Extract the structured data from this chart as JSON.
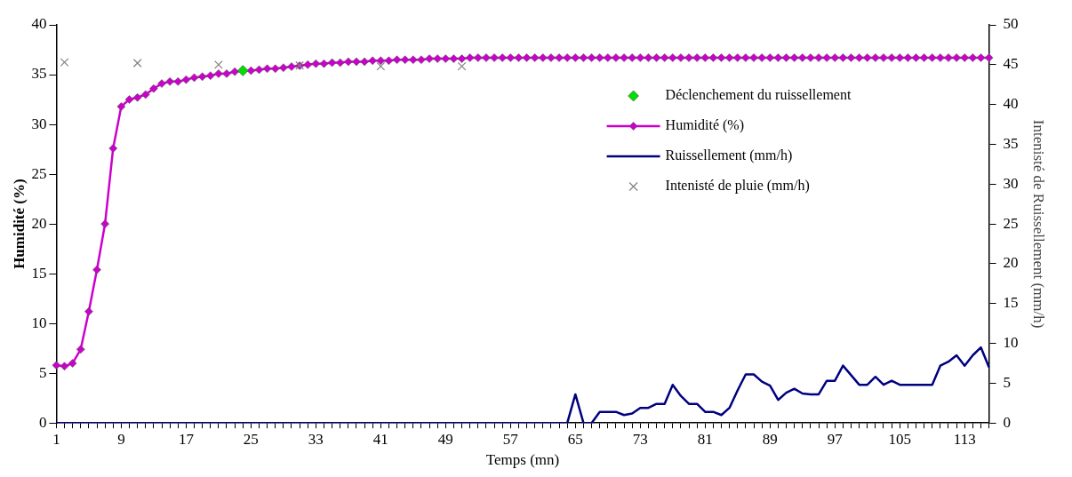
{
  "chart_data": {
    "type": "line",
    "xlabel": "Temps (mn)",
    "ylabel": "Humidité (%)",
    "y2label": "Intenisté de Ruissellement (mm/h)",
    "categories": [
      "1",
      null,
      null,
      null,
      null,
      null,
      null,
      null,
      "9",
      null,
      null,
      null,
      null,
      null,
      null,
      null,
      "17",
      null,
      null,
      null,
      null,
      null,
      null,
      null,
      "25",
      null,
      null,
      null,
      null,
      null,
      null,
      null,
      "33",
      null,
      null,
      null,
      null,
      null,
      null,
      null,
      "41",
      null,
      null,
      null,
      null,
      null,
      null,
      null,
      "49",
      null,
      null,
      null,
      null,
      null,
      null,
      null,
      "57",
      null,
      null,
      null,
      null,
      null,
      null,
      null,
      "65",
      null,
      null,
      null,
      null,
      null,
      null,
      null,
      "73",
      null,
      null,
      null,
      null,
      null,
      null,
      null,
      "81",
      null,
      null,
      null,
      null,
      null,
      null,
      null,
      "89",
      null,
      null,
      null,
      null,
      null,
      null,
      null,
      "97",
      null,
      null,
      null,
      null,
      null,
      null,
      null,
      "105",
      null,
      null,
      null,
      null,
      null,
      null,
      null,
      "113",
      null,
      null,
      null
    ],
    "ylim": [
      0,
      40
    ],
    "yticks": [
      0,
      5,
      10,
      15,
      20,
      25,
      30,
      35,
      40
    ],
    "y2lim": [
      0,
      50
    ],
    "y2ticks": [
      0,
      5,
      10,
      15,
      20,
      25,
      30,
      35,
      40,
      45,
      50
    ],
    "grid": false,
    "legend": "top right",
    "series": [
      {
        "name": "Déclenchement du ruissellement",
        "type": "scatter",
        "marker": "diamond",
        "color": "#00dd00",
        "values": [
          null,
          null,
          null,
          null,
          null,
          null,
          null,
          null,
          null,
          null,
          null,
          null,
          null,
          null,
          null,
          null,
          null,
          null,
          null,
          null,
          null,
          null,
          null,
          35.4,
          null,
          null,
          null,
          null,
          null,
          null,
          null,
          null,
          null,
          null,
          null,
          null,
          null,
          null,
          null,
          null,
          null,
          null,
          null,
          null,
          null,
          null,
          null,
          null,
          null,
          null,
          null,
          null,
          null,
          null,
          null,
          null,
          null,
          null,
          null,
          null,
          null,
          null,
          null,
          null,
          null,
          null,
          null,
          null,
          null,
          null,
          null,
          null,
          null,
          null,
          null,
          null,
          null,
          null,
          null,
          null,
          null,
          null,
          null,
          null,
          null,
          null,
          null,
          null,
          null,
          null,
          null,
          null,
          null,
          null,
          null,
          null,
          null,
          null,
          null,
          null,
          null,
          null,
          null,
          null,
          null,
          null,
          null,
          null,
          null,
          null,
          null,
          null,
          null,
          null,
          null,
          null
        ]
      },
      {
        "name": "Humidité (%)",
        "type": "line",
        "marker": "diamond",
        "color": "#cc00cc",
        "values": [
          5.8,
          5.7,
          6.0,
          7.4,
          11.2,
          15.4,
          20.0,
          27.6,
          31.8,
          32.5,
          32.7,
          33.0,
          33.6,
          34.1,
          34.3,
          34.3,
          34.5,
          34.7,
          34.8,
          34.9,
          35.1,
          35.1,
          35.3,
          35.4,
          35.4,
          35.5,
          35.6,
          35.6,
          35.7,
          35.8,
          35.9,
          36.0,
          36.1,
          36.1,
          36.2,
          36.2,
          36.3,
          36.3,
          36.3,
          36.4,
          36.4,
          36.4,
          36.5,
          36.5,
          36.5,
          36.5,
          36.6,
          36.6,
          36.6,
          36.6,
          36.6,
          36.7,
          36.7,
          36.7,
          36.7,
          36.7,
          36.7,
          36.7,
          36.7,
          36.7,
          36.7,
          36.7,
          36.7,
          36.7,
          36.7,
          36.7,
          36.7,
          36.7,
          36.7,
          36.7,
          36.7,
          36.7,
          36.7,
          36.7,
          36.7,
          36.7,
          36.7,
          36.7,
          36.7,
          36.7,
          36.7,
          36.7,
          36.7,
          36.7,
          36.7,
          36.7,
          36.7,
          36.7,
          36.7,
          36.7,
          36.7,
          36.7,
          36.7,
          36.7,
          36.7,
          36.7,
          36.7,
          36.7,
          36.7,
          36.7,
          36.7,
          36.7,
          36.7,
          36.7,
          36.7,
          36.7,
          36.7,
          36.7,
          36.7,
          36.7,
          36.7,
          36.7,
          36.7,
          36.7,
          36.7,
          36.7
        ]
      },
      {
        "name": "Ruissellement (mm/h)",
        "type": "line",
        "marker": "none",
        "axis": "y2",
        "color": "#000080",
        "values": [
          0,
          0,
          0,
          0,
          0,
          0,
          0,
          0,
          0,
          0,
          0,
          0,
          0,
          0,
          0,
          0,
          0,
          0,
          0,
          0,
          0,
          0,
          0,
          0,
          0,
          0,
          0,
          0,
          0,
          0,
          0,
          0,
          0,
          0,
          0,
          0,
          0,
          0,
          0,
          0,
          0,
          0,
          0,
          0,
          0,
          0,
          0,
          0,
          0,
          0,
          0,
          0,
          0,
          0,
          0,
          0,
          0,
          0,
          0,
          0,
          0,
          0,
          0,
          0,
          3.6,
          0,
          0,
          1.4,
          1.4,
          1.4,
          1.0,
          1.2,
          1.9,
          1.9,
          2.4,
          2.4,
          4.8,
          3.4,
          2.4,
          2.4,
          1.4,
          1.4,
          1.0,
          1.9,
          4.1,
          6.1,
          6.1,
          5.2,
          4.7,
          2.9,
          3.8,
          4.3,
          3.7,
          3.6,
          3.6,
          5.3,
          5.3,
          7.2,
          6.0,
          4.8,
          4.8,
          5.8,
          4.8,
          5.3,
          4.8,
          4.8,
          4.8,
          4.8,
          4.8,
          7.2,
          7.7,
          8.5,
          7.2,
          8.5,
          9.5,
          7.0
        ]
      },
      {
        "name": "Intenisté de pluie (mm/h)",
        "type": "scatter",
        "marker": "cross",
        "axis": "y2",
        "color": "#808080",
        "values": [
          null,
          45.3,
          null,
          null,
          null,
          null,
          null,
          null,
          null,
          null,
          45.2,
          null,
          null,
          null,
          null,
          null,
          null,
          null,
          null,
          null,
          45.0,
          null,
          null,
          null,
          null,
          null,
          null,
          null,
          null,
          null,
          44.9,
          null,
          null,
          null,
          null,
          null,
          null,
          null,
          null,
          null,
          44.8,
          null,
          null,
          null,
          null,
          null,
          null,
          null,
          null,
          null,
          44.8,
          null,
          null,
          null,
          null,
          null,
          null,
          null,
          null,
          null,
          null,
          null,
          null,
          null,
          null,
          null,
          null,
          null,
          null,
          null,
          null,
          null,
          null,
          null,
          null,
          null,
          null,
          null,
          null,
          null,
          null,
          null,
          null,
          null,
          null,
          null,
          null,
          null,
          null,
          null,
          null,
          null,
          null,
          null,
          null,
          null,
          null,
          null,
          null,
          null,
          null,
          null,
          null,
          null,
          null,
          null,
          null,
          null,
          null,
          null,
          null,
          null,
          null,
          null,
          null,
          null
        ]
      }
    ]
  }
}
